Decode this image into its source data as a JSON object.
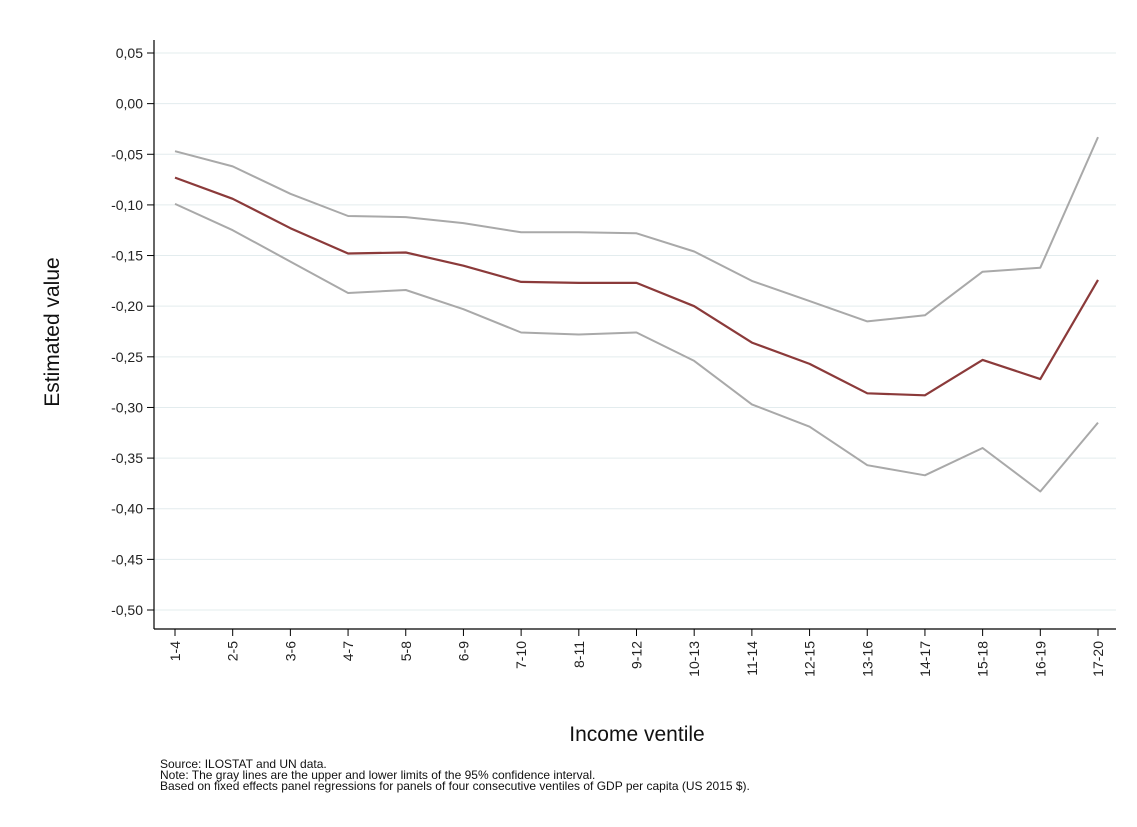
{
  "chart_data": {
    "type": "line",
    "xlabel": "Income ventile",
    "ylabel": "Estimated value",
    "ylim": [
      -0.5,
      0.05
    ],
    "yticks": [
      "0,05",
      "0,00",
      "-0,05",
      "-0,10",
      "-0,15",
      "-0,20",
      "-0,25",
      "-0,30",
      "-0,35",
      "-0,40",
      "-0,45",
      "-0,50"
    ],
    "ytick_values": [
      0.05,
      0.0,
      -0.05,
      -0.1,
      -0.15,
      -0.2,
      -0.25,
      -0.3,
      -0.35,
      -0.4,
      -0.45,
      -0.5
    ],
    "categories": [
      "1-4",
      "2-5",
      "3-6",
      "4-7",
      "5-8",
      "6-9",
      "7-10",
      "8-11",
      "9-12",
      "10-13",
      "11-14",
      "12-15",
      "13-16",
      "14-17",
      "15-18",
      "16-19",
      "17-20"
    ],
    "grid": true,
    "legend": "none",
    "series": [
      {
        "role": "estimate",
        "color": "#8b3a3a",
        "values": [
          -0.073,
          -0.094,
          -0.123,
          -0.148,
          -0.147,
          -0.16,
          -0.176,
          -0.177,
          -0.177,
          -0.2,
          -0.236,
          -0.257,
          -0.286,
          -0.288,
          -0.253,
          -0.272,
          -0.174
        ]
      },
      {
        "role": "upper",
        "color": "#a9a9a9",
        "values": [
          -0.047,
          -0.062,
          -0.089,
          -0.111,
          -0.112,
          -0.118,
          -0.127,
          -0.127,
          -0.128,
          -0.146,
          -0.175,
          -0.195,
          -0.215,
          -0.209,
          -0.166,
          -0.162,
          -0.033
        ]
      },
      {
        "role": "lower",
        "color": "#a9a9a9",
        "values": [
          -0.099,
          -0.125,
          -0.156,
          -0.187,
          -0.184,
          -0.203,
          -0.226,
          -0.228,
          -0.226,
          -0.254,
          -0.297,
          -0.319,
          -0.357,
          -0.367,
          -0.34,
          -0.383,
          -0.315
        ]
      }
    ]
  },
  "notes": {
    "source": "Source: ILOSTAT and UN data.",
    "note": "Note: The gray lines are the upper and lower limits of the 95% confidence interval.",
    "basis": "Based on fixed effects panel regressions for panels of four consecutive ventiles of GDP per capita (US 2015 $)."
  }
}
